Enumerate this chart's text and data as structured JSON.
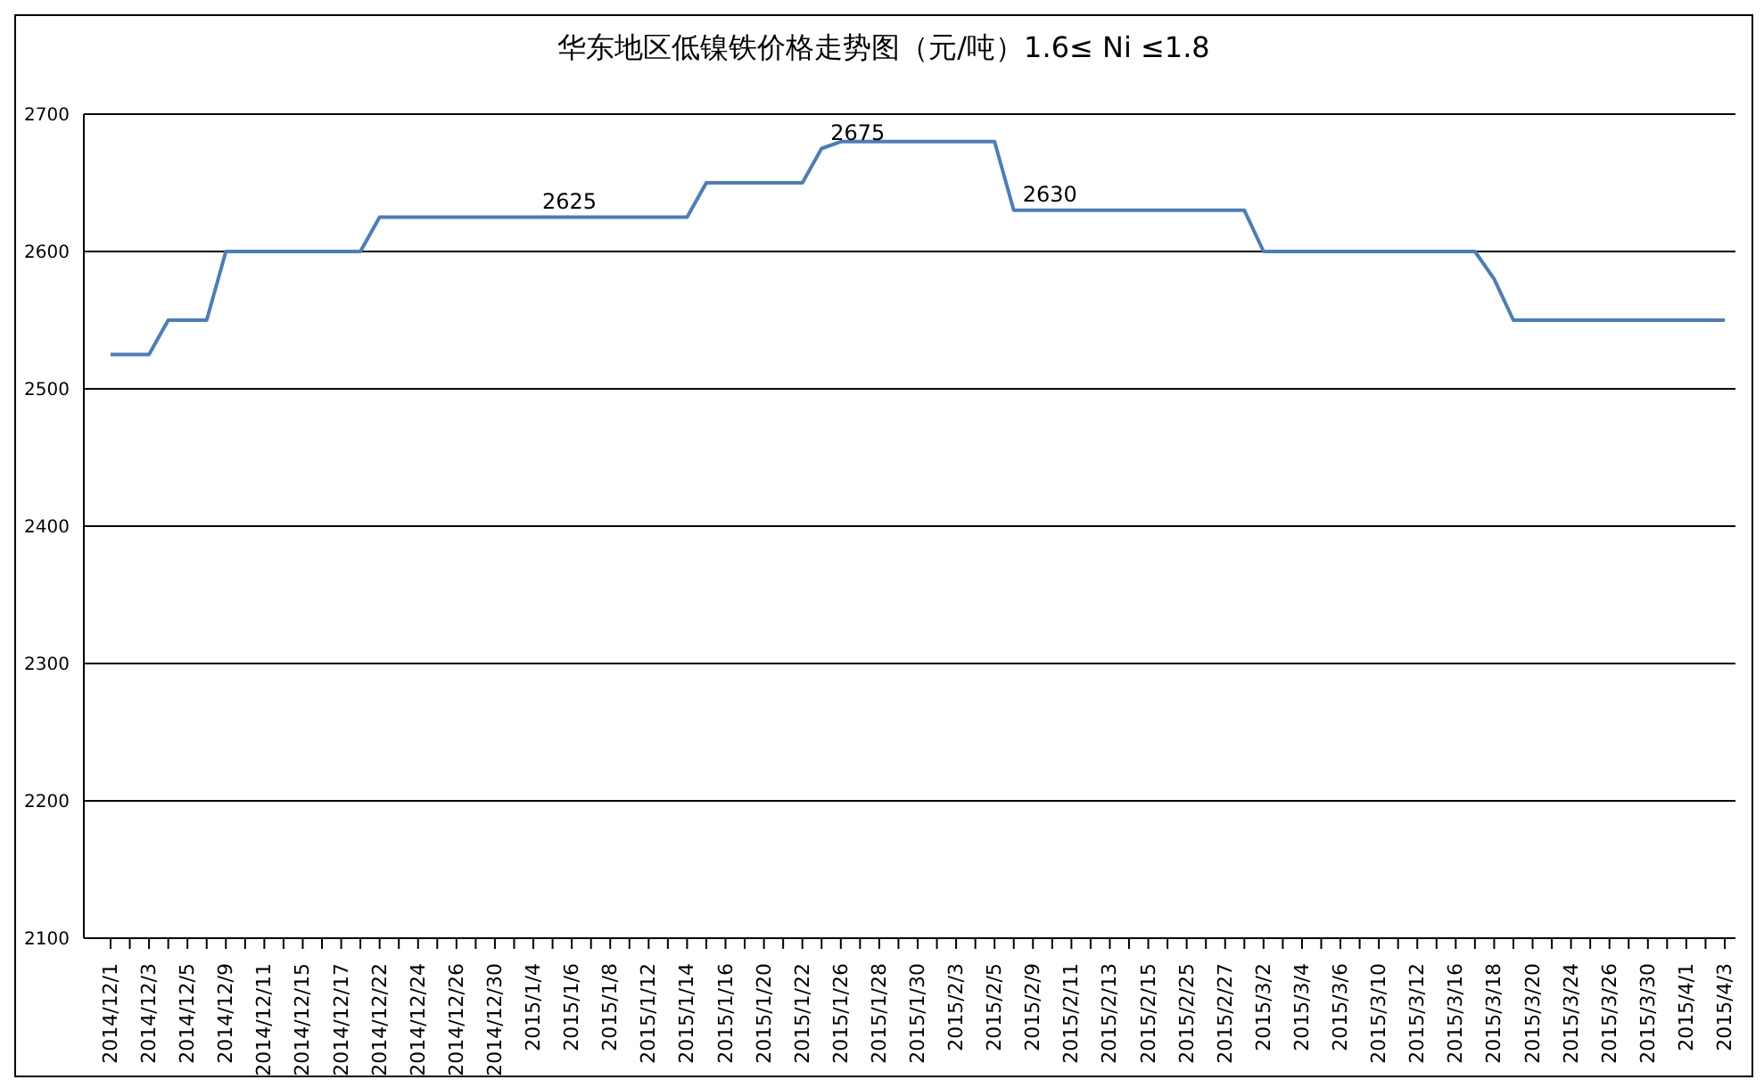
{
  "chart_data": {
    "type": "line",
    "title": "华东地区低镍铁价格走势图（元/吨）1.6≤ Ni ≤1.8",
    "categories": [
      "2014/12/1",
      null,
      "2014/12/3",
      null,
      "2014/12/5",
      null,
      "2014/12/9",
      null,
      "2014/12/11",
      null,
      "2014/12/15",
      null,
      "2014/12/17",
      null,
      "2014/12/22",
      null,
      "2014/12/24",
      null,
      "2014/12/26",
      null,
      "2014/12/30",
      null,
      "2015/1/4",
      null,
      "2015/1/6",
      null,
      "2015/1/8",
      null,
      "2015/1/12",
      null,
      "2015/1/14",
      null,
      "2015/1/16",
      null,
      "2015/1/20",
      null,
      "2015/1/22",
      null,
      "2015/1/26",
      null,
      "2015/1/28",
      null,
      "2015/1/30",
      null,
      "2015/2/3",
      null,
      "2015/2/5",
      null,
      "2015/2/9",
      null,
      "2015/2/11",
      null,
      "2015/2/13",
      null,
      "2015/2/15",
      null,
      "2015/2/25",
      null,
      "2015/2/27",
      null,
      "2015/3/2",
      null,
      "2015/3/4",
      null,
      "2015/3/6",
      null,
      "2015/3/10",
      null,
      "2015/3/12",
      null,
      "2015/3/16",
      null,
      "2015/3/18",
      null,
      "2015/3/20",
      null,
      "2015/3/24",
      null,
      "2015/3/26",
      null,
      "2015/3/30",
      null,
      "2015/4/1",
      null,
      "2015/4/3"
    ],
    "series": [
      {
        "color": "#4a7ebb",
        "values": [
          2525,
          2525,
          2525,
          2550,
          2550,
          2550,
          2600,
          2600,
          2600,
          2600,
          2600,
          2600,
          2600,
          2600,
          2625,
          2625,
          2625,
          2625,
          2625,
          2625,
          2625,
          2625,
          2625,
          2625,
          2625,
          2625,
          2625,
          2625,
          2625,
          2625,
          2625,
          2650,
          2650,
          2650,
          2650,
          2650,
          2650,
          2675,
          2680,
          2680,
          2680,
          2680,
          2680,
          2680,
          2680,
          2680,
          2680,
          2630,
          2630,
          2630,
          2630,
          2630,
          2630,
          2630,
          2630,
          2630,
          2630,
          2630,
          2630,
          2630,
          2600,
          2600,
          2600,
          2600,
          2600,
          2600,
          2600,
          2600,
          2600,
          2600,
          2600,
          2600,
          2580,
          2550,
          2550,
          2550,
          2550,
          2550,
          2550,
          2550,
          2550,
          2550,
          2550,
          2550,
          2550
        ],
        "value_labels": [
          null,
          null,
          null,
          null,
          null,
          null,
          null,
          null,
          null,
          null,
          null,
          null,
          null,
          null,
          null,
          null,
          null,
          null,
          null,
          null,
          null,
          null,
          "2625",
          null,
          null,
          null,
          null,
          null,
          null,
          null,
          null,
          null,
          null,
          null,
          null,
          null,
          null,
          "2675",
          null,
          null,
          null,
          null,
          null,
          null,
          null,
          null,
          null,
          "2630",
          null,
          null,
          null,
          null,
          null,
          null,
          null,
          null,
          null,
          null,
          null,
          null,
          null,
          null,
          null,
          null,
          null,
          null,
          null,
          null,
          null,
          null,
          null,
          null,
          null,
          null,
          null,
          null,
          null,
          null,
          null,
          null,
          null,
          null,
          null,
          null,
          null
        ]
      }
    ],
    "ylim": [
      2100,
      2700
    ],
    "yticks": [
      2100,
      2200,
      2300,
      2400,
      2500,
      2600,
      2700
    ],
    "grid": "y",
    "line_style": "solid"
  }
}
